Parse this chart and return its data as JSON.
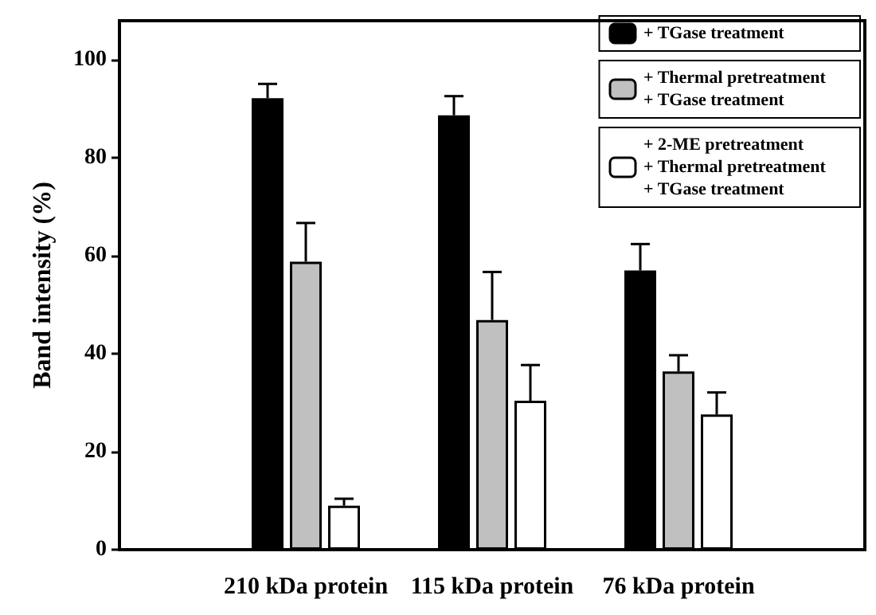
{
  "chart_data": {
    "type": "bar",
    "ylabel": "Band intensity (%)",
    "categories": [
      "210 kDa protein",
      "115 kDa protein",
      "76 kDa protein"
    ],
    "series": [
      {
        "name": "+ TGase treatment",
        "color": "#000000",
        "values": [
          92.2,
          88.7,
          57.0
        ],
        "errors": [
          [
            92.2,
            95.1
          ],
          [
            88.7,
            92.6
          ],
          [
            57.0,
            62.4
          ]
        ]
      },
      {
        "name": "+ Thermal pretreatment\n+ TGase treatment",
        "color": "#c0c0c0",
        "values": [
          58.8,
          46.9,
          36.4
        ],
        "errors": [
          [
            58.8,
            66.7
          ],
          [
            46.9,
            56.7
          ],
          [
            36.4,
            39.7
          ]
        ]
      },
      {
        "name": "+ 2-ME pretreatment\n+ Thermal pretreatment\n+ TGase treatment",
        "color": "#ffffff",
        "values": [
          9.0,
          30.4,
          27.6
        ],
        "errors": [
          [
            9.0,
            10.4
          ],
          [
            30.4,
            37.7
          ],
          [
            27.6,
            32.1
          ]
        ]
      }
    ],
    "ylim": [
      0,
      108
    ],
    "yticks": [
      0,
      20,
      40,
      60,
      80,
      100
    ],
    "grid": false,
    "legend": "top right"
  }
}
